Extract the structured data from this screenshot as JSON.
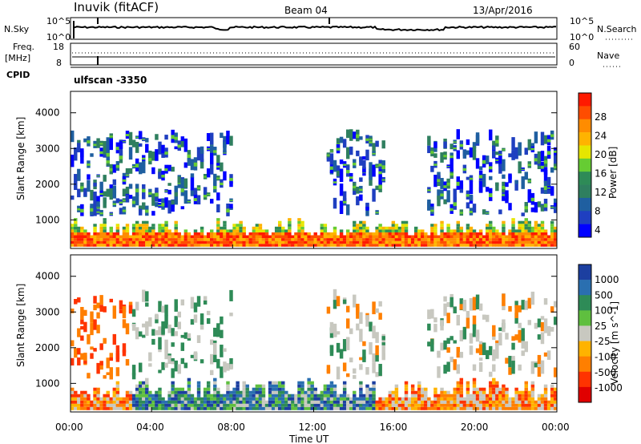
{
  "header": {
    "station": "Inuvik (fitACF)",
    "beam": "Beam 04",
    "date": "13/Apr/2016"
  },
  "noise_panel": {
    "left_label": "N.Sky",
    "right_label": "N.Search",
    "left_ticks": [
      "10^5",
      "10^0"
    ],
    "right_ticks": [
      "10^5",
      "10^0"
    ]
  },
  "freq_panel": {
    "left_label_1": "Freq.",
    "left_label_2": "[MHz]",
    "right_label": "Nave",
    "left_ticks": [
      "18",
      "8"
    ],
    "right_ticks": [
      "60",
      "0"
    ]
  },
  "cpid": {
    "label": "CPID",
    "text": "ulfscan -3350"
  },
  "xaxis": {
    "title": "Time UT",
    "ticks": [
      "00:00",
      "04:00",
      "08:00",
      "12:00",
      "16:00",
      "20:00",
      "00:00"
    ]
  },
  "power_colorbar": {
    "title": "Power [dB]",
    "labels": [
      "28",
      "24",
      "20",
      "16",
      "12",
      "8",
      "4"
    ],
    "colors": [
      "#ff1a00",
      "#ff4d00",
      "#ff8c00",
      "#ffb300",
      "#e6e600",
      "#66cc33",
      "#2e8b57",
      "#2f7f5f",
      "#1f5fa0",
      "#1f3fc0",
      "#0000ff"
    ]
  },
  "velocity_colorbar": {
    "title": "Velocity [m s^-1]",
    "labels": [
      "1000",
      "500",
      "100",
      "25",
      "-25",
      "-100",
      "-500",
      "-1000"
    ],
    "colors": [
      "#1c3fa0",
      "#2a6fb0",
      "#2e8b57",
      "#5fbf3f",
      "#c8c8c0",
      "#ffb300",
      "#ff7f00",
      "#ff3300",
      "#e00000"
    ]
  },
  "chart_data": [
    {
      "type": "heatmap",
      "name": "power",
      "ylabel": "Slant Range [km]",
      "xlabel": "",
      "yticks": [
        "1000",
        "2000",
        "3000",
        "4000"
      ],
      "ylim": [
        200,
        4600
      ],
      "xlim_hours": [
        0,
        24
      ],
      "regions": [
        {
          "t0": 0.0,
          "t1": 24.0,
          "r0": 250,
          "r1": 700,
          "level": "high"
        },
        {
          "t0": 0.0,
          "t1": 24.0,
          "r0": 700,
          "r1": 1100,
          "level": "mid"
        },
        {
          "t0": 0.0,
          "t1": 8.0,
          "r0": 1100,
          "r1": 3300,
          "level": "low"
        },
        {
          "t0": 12.0,
          "t1": 24.0,
          "r0": 1100,
          "r1": 3300,
          "level": "low"
        }
      ]
    },
    {
      "type": "heatmap",
      "name": "velocity",
      "ylabel": "Slant Range [km]",
      "xlabel": "Time UT",
      "yticks": [
        "1000",
        "2000",
        "3000",
        "4000"
      ],
      "ylim": [
        200,
        4600
      ],
      "xlim_hours": [
        0,
        24
      ]
    }
  ]
}
